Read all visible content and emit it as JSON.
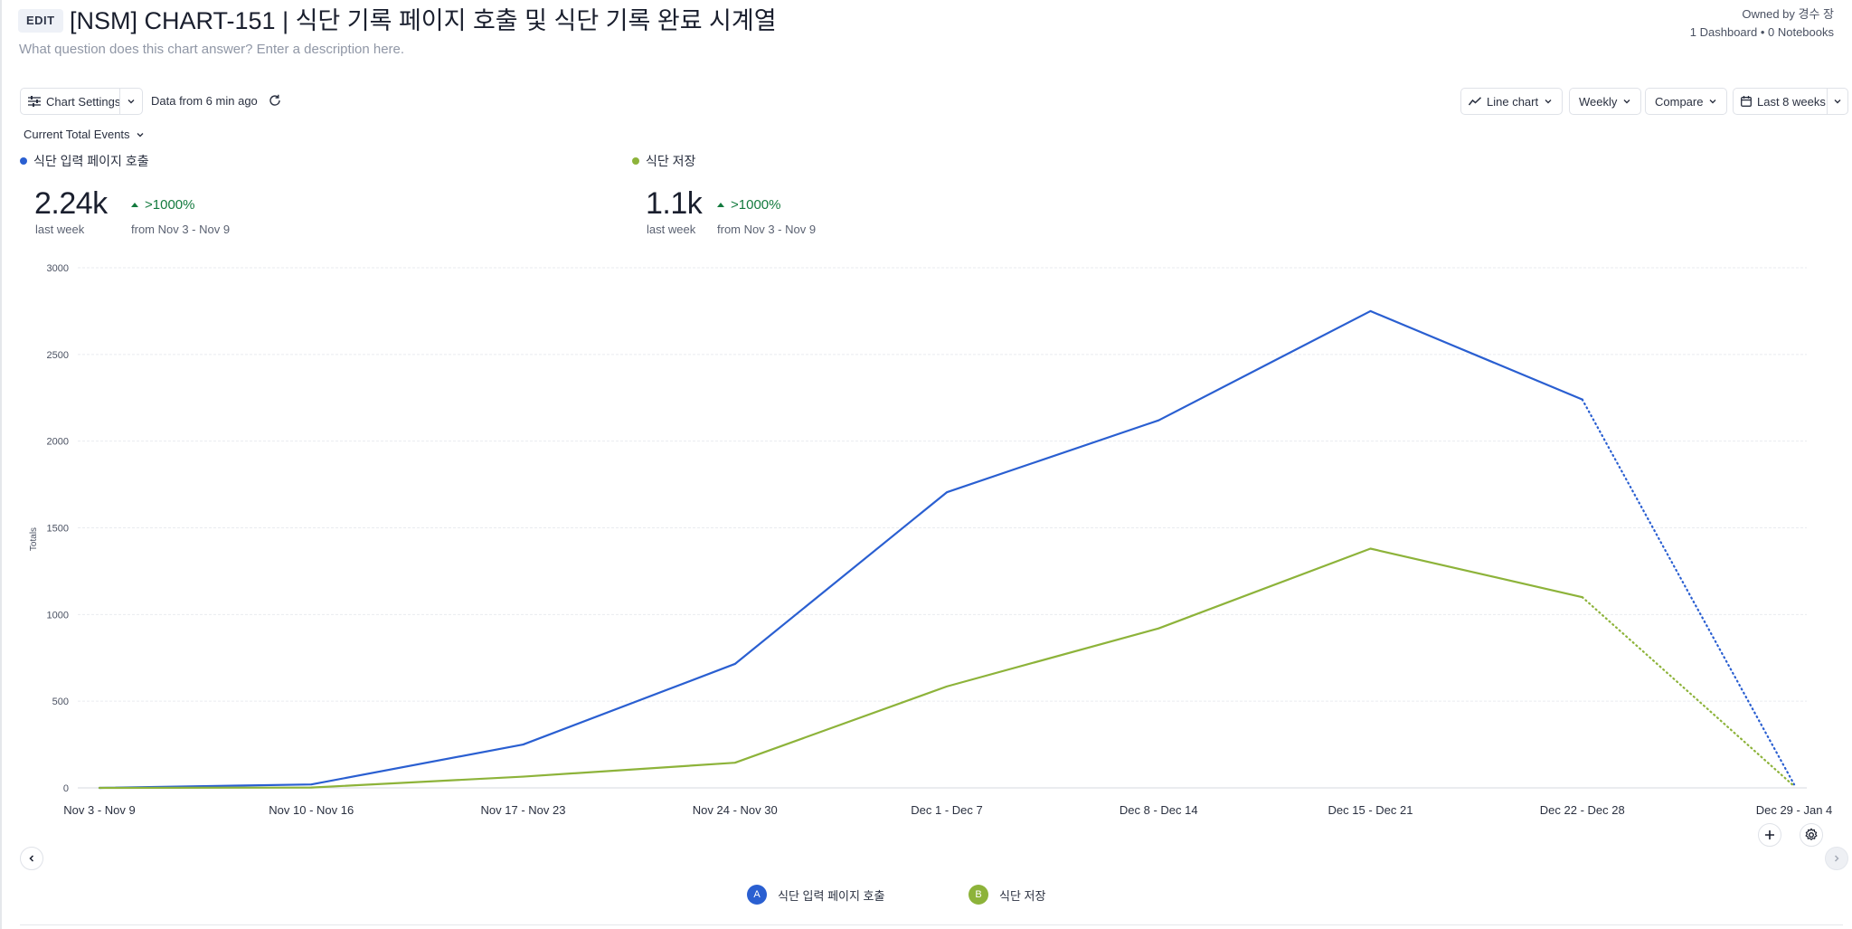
{
  "header": {
    "edit_label": "EDIT",
    "title": "[NSM] CHART-151 | 식단 기록 페이지 호출 및 식단 기록 완료 시계열",
    "description_placeholder": "What question does this chart answer? Enter a description here.",
    "owner": "Owned by 경수 장",
    "usage": "1 Dashboard • 0 Notebooks"
  },
  "toolbar": {
    "chart_settings_label": "Chart Settings",
    "data_age": "Data from 6 min ago",
    "chart_type_label": "Line chart",
    "interval_label": "Weekly",
    "compare_label": "Compare",
    "range_label": "Last 8 weeks",
    "metric_label": "Current Total Events"
  },
  "summary": [
    {
      "name": "식단 입력 페이지 호출",
      "value": "2.24k",
      "period": "last week",
      "delta": ">1000%",
      "from": "from Nov 3 - Nov 9",
      "color": "#2a5fd1"
    },
    {
      "name": "식단 저장",
      "value": "1.1k",
      "period": "last week",
      "delta": ">1000%",
      "from": "from Nov 3 - Nov 9",
      "color": "#8db33a"
    }
  ],
  "chart_data": {
    "type": "line",
    "ylabel": "Totals",
    "ylim": [
      0,
      3000
    ],
    "yticks": [
      0,
      500,
      1000,
      1500,
      2000,
      2500,
      3000
    ],
    "categories": [
      "Nov 3 - Nov 9",
      "Nov 10 - Nov 16",
      "Nov 17 - Nov 23",
      "Nov 24 - Nov 30",
      "Dec 1 - Dec 7",
      "Dec 8 - Dec 14",
      "Dec 15 - Dec 21",
      "Dec 22 - Dec 28",
      "Dec 29 - Jan 4"
    ],
    "incomplete_from_index": 7,
    "grid": true,
    "legend_position": "bottom",
    "series": [
      {
        "name": "식단 입력 페이지 호출",
        "badge": "A",
        "color": "#2a5fd1",
        "values": [
          0,
          20,
          250,
          715,
          1705,
          2120,
          2750,
          2240,
          20
        ]
      },
      {
        "name": "식단 저장",
        "badge": "B",
        "color": "#8db33a",
        "values": [
          0,
          2,
          65,
          145,
          585,
          920,
          1380,
          1100,
          10
        ]
      }
    ]
  }
}
